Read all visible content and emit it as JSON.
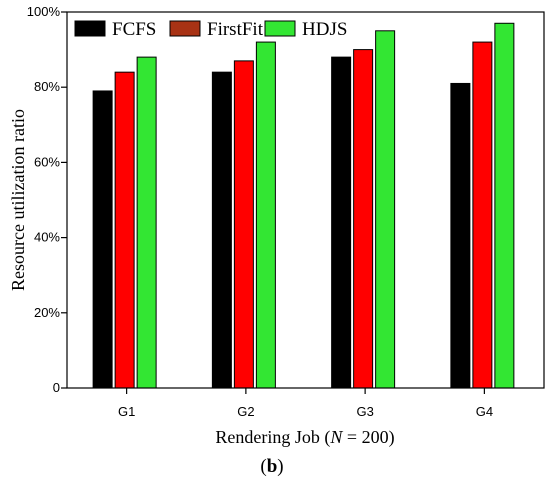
{
  "chart_data": {
    "type": "bar",
    "categories": [
      "G1",
      "G2",
      "G3",
      "G4"
    ],
    "series": [
      {
        "name": "FCFS",
        "values": [
          79,
          84,
          88,
          81
        ],
        "color": "#000000"
      },
      {
        "name": "FirstFit",
        "values": [
          84,
          87,
          90,
          92
        ],
        "color": "#ff0000",
        "legend_color": "#a83214"
      },
      {
        "name": "HDJS",
        "values": [
          88,
          92,
          95,
          97
        ],
        "color": "#33e633"
      }
    ],
    "ylim": [
      0,
      100
    ],
    "yticks": [
      0,
      20,
      40,
      60,
      80,
      100
    ],
    "ytick_labels": [
      "0",
      "20%",
      "40%",
      "60%",
      "80%",
      "100%"
    ],
    "ylabel": "Resource utilization ratio",
    "xlabel_prefix": "Rendering Job (",
    "xlabel_var": "N",
    "xlabel_suffix": " = 200)",
    "panel_label": "b",
    "legend_position": "top-left",
    "grid": false
  }
}
